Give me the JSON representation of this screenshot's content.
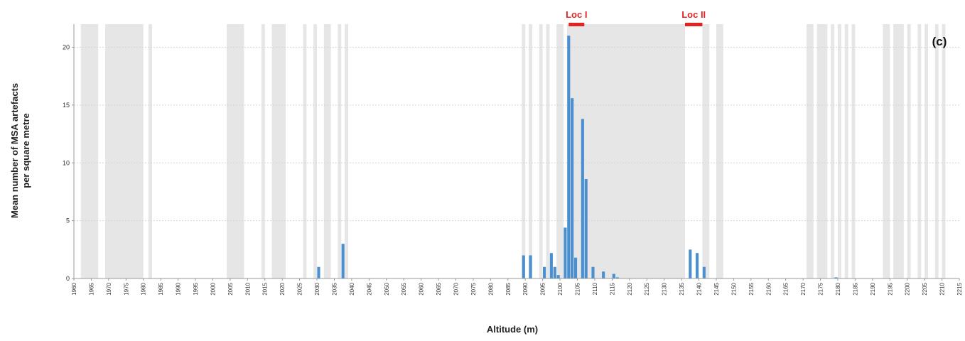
{
  "chart_data": {
    "type": "bar",
    "panel_label": "(c)",
    "xlabel": "Altitude (m)",
    "ylabel_line1": "Mean number of MSA artefacts",
    "ylabel_line2": "per square metre",
    "xlim": [
      1960,
      2215
    ],
    "ylim": [
      0,
      22
    ],
    "x_ticks": [
      1960,
      1965,
      1970,
      1975,
      1980,
      1985,
      1990,
      1995,
      2000,
      2005,
      2010,
      2015,
      2020,
      2025,
      2030,
      2035,
      2040,
      2045,
      2050,
      2055,
      2060,
      2065,
      2070,
      2075,
      2080,
      2085,
      2090,
      2095,
      2100,
      2105,
      2110,
      2115,
      2120,
      2125,
      2130,
      2135,
      2140,
      2145,
      2150,
      2155,
      2160,
      2165,
      2170,
      2175,
      2180,
      2185,
      2190,
      2195,
      2200,
      2205,
      2210,
      2215
    ],
    "y_ticks": [
      0,
      5,
      10,
      15,
      20
    ],
    "grid": true,
    "bar_color": "#4a8fcf",
    "shade_color": "#e6e6e6",
    "loc_color": "#e02424",
    "bars": [
      {
        "x": 2030.5,
        "y": 1.0
      },
      {
        "x": 2037.5,
        "y": 3.0
      },
      {
        "x": 2089.5,
        "y": 2.0
      },
      {
        "x": 2091.5,
        "y": 2.0
      },
      {
        "x": 2095.5,
        "y": 1.0
      },
      {
        "x": 2097.5,
        "y": 2.2
      },
      {
        "x": 2098.5,
        "y": 1.0
      },
      {
        "x": 2099.5,
        "y": 0.3
      },
      {
        "x": 2101.5,
        "y": 4.4
      },
      {
        "x": 2102.5,
        "y": 21.0
      },
      {
        "x": 2103.5,
        "y": 15.6
      },
      {
        "x": 2104.5,
        "y": 1.8
      },
      {
        "x": 2106.5,
        "y": 13.8
      },
      {
        "x": 2107.5,
        "y": 8.6
      },
      {
        "x": 2109.5,
        "y": 1.0
      },
      {
        "x": 2112.5,
        "y": 0.6
      },
      {
        "x": 2115.5,
        "y": 0.4
      },
      {
        "x": 2116.5,
        "y": 0.1
      },
      {
        "x": 2137.5,
        "y": 2.5
      },
      {
        "x": 2139.5,
        "y": 2.2
      },
      {
        "x": 2141.5,
        "y": 1.0
      },
      {
        "x": 2179.5,
        "y": 0.1
      }
    ],
    "shaded_ranges": [
      [
        1962,
        1967
      ],
      [
        1969,
        1980
      ],
      [
        1981.5,
        1982.5
      ],
      [
        2004,
        2009
      ],
      [
        2014,
        2015
      ],
      [
        2017,
        2021
      ],
      [
        2026,
        2027
      ],
      [
        2029,
        2030
      ],
      [
        2032,
        2034
      ],
      [
        2036,
        2037
      ],
      [
        2038,
        2039
      ],
      [
        2089,
        2090
      ],
      [
        2091,
        2092
      ],
      [
        2094,
        2095
      ],
      [
        2096,
        2097
      ],
      [
        2099,
        2101
      ],
      [
        2102,
        2136
      ],
      [
        2141,
        2143
      ],
      [
        2145,
        2147
      ],
      [
        2171,
        2173
      ],
      [
        2174,
        2177
      ],
      [
        2178,
        2179
      ],
      [
        2180,
        2181
      ],
      [
        2182,
        2183
      ],
      [
        2184,
        2185
      ],
      [
        2193,
        2195
      ],
      [
        2196,
        2199
      ],
      [
        2200,
        2201
      ],
      [
        2203,
        2204
      ],
      [
        2205,
        2206
      ],
      [
        2208,
        2209
      ],
      [
        2210,
        2211
      ]
    ],
    "locations": [
      {
        "label": "Loc I",
        "x_start": 2102.5,
        "x_end": 2107
      },
      {
        "label": "Loc II",
        "x_start": 2136,
        "x_end": 2141
      }
    ]
  }
}
